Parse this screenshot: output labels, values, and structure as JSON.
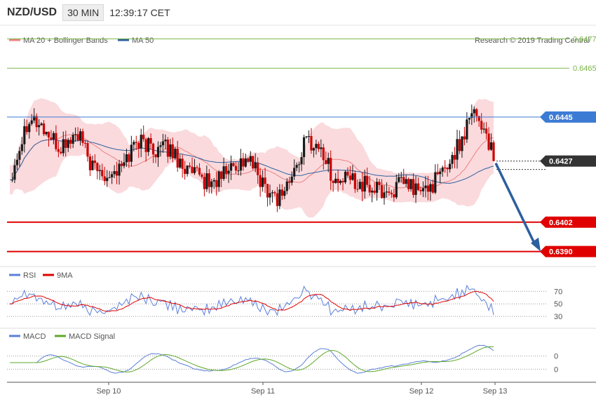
{
  "header": {
    "symbol": "NZD/USD",
    "timeframe": "30 MIN",
    "time": "12:39:17 CET"
  },
  "legend": {
    "bb": "MA 20 + Bollinger Bands",
    "ma50": "MA 50",
    "credit": "Research © 2019 Trading Central"
  },
  "colors": {
    "up": "#1a1a1a",
    "down": "#cc0000",
    "bb": "#f08080",
    "bbFill": "#fadadd",
    "ma50": "#2c5f9e",
    "res": "#3b7bd4",
    "sup": "#e00000",
    "target": "#7ab648",
    "current": "#333333",
    "arrow": "#2c5f9e",
    "rsi": "#5b7fd8",
    "rsi9": "#e00000",
    "macd": "#5b7fd8",
    "macdSig": "#5fa82a"
  },
  "chart_data": [
    {
      "type": "candlestick",
      "title": "NZD/USD",
      "ylim": [
        0.6385,
        0.6482
      ],
      "xTicks": [
        "Sep 10",
        "Sep 11",
        "Sep 12",
        "Sep 13"
      ],
      "levels": [
        {
          "kind": "target",
          "value": "0.6477",
          "y": 0.6477
        },
        {
          "kind": "target",
          "value": "0.6465",
          "y": 0.6465
        },
        {
          "kind": "resistance",
          "value": "0.6445",
          "y": 0.6445
        },
        {
          "kind": "current",
          "value": "0.6427",
          "y": 0.6427
        },
        {
          "kind": "support",
          "value": "0.6402",
          "y": 0.6402
        },
        {
          "kind": "support",
          "value": "0.6390",
          "y": 0.639
        }
      ],
      "arrow": {
        "from": 0.6427,
        "to": 0.639
      },
      "series": [
        {
          "name": "MA 20 + Bollinger Bands"
        },
        {
          "name": "MA 50"
        }
      ]
    },
    {
      "type": "line",
      "ylim": [
        20,
        85
      ],
      "yTicks": [
        "70",
        "50",
        "30"
      ],
      "series": [
        {
          "name": "RSI"
        },
        {
          "name": "9MA"
        }
      ]
    },
    {
      "type": "line",
      "ylim": [
        -1.6,
        1.6
      ],
      "yTicks": [
        "0",
        "0"
      ],
      "series": [
        {
          "name": "MACD"
        },
        {
          "name": "MACD Signal"
        }
      ]
    }
  ]
}
